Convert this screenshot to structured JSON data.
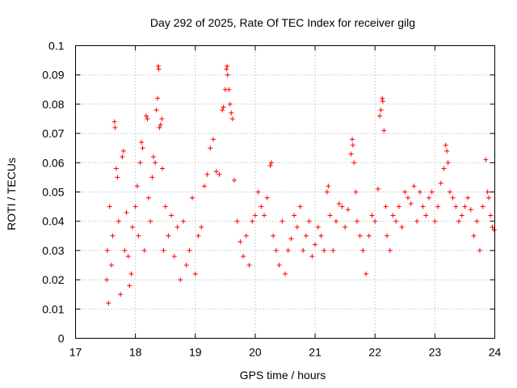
{
  "chart_data": {
    "type": "scatter",
    "title": "Day 292 of 2025, Rate Of TEC Index for receiver gilg",
    "xlabel": "GPS time / hours",
    "ylabel": "ROTI / TECUs",
    "xlim": [
      17,
      24
    ],
    "ylim": [
      0,
      0.1
    ],
    "grid": true,
    "marker": "+",
    "color": "#ff0000",
    "x_ticks": [
      "17",
      "18",
      "19",
      "20",
      "21",
      "22",
      "23",
      "24"
    ],
    "y_ticks": [
      "0",
      "0.01",
      "0.02",
      "0.03",
      "0.04",
      "0.05",
      "0.06",
      "0.07",
      "0.08",
      "0.09",
      "0.1"
    ],
    "series": [
      {
        "name": "ROTI",
        "points": [
          [
            17.52,
            0.02
          ],
          [
            17.53,
            0.03
          ],
          [
            17.55,
            0.012
          ],
          [
            17.57,
            0.045
          ],
          [
            17.6,
            0.025
          ],
          [
            17.62,
            0.035
          ],
          [
            17.65,
            0.074
          ],
          [
            17.66,
            0.072
          ],
          [
            17.68,
            0.058
          ],
          [
            17.7,
            0.055
          ],
          [
            17.72,
            0.04
          ],
          [
            17.75,
            0.015
          ],
          [
            17.78,
            0.062
          ],
          [
            17.8,
            0.064
          ],
          [
            17.82,
            0.03
          ],
          [
            17.85,
            0.043
          ],
          [
            17.88,
            0.028
          ],
          [
            17.9,
            0.018
          ],
          [
            17.93,
            0.022
          ],
          [
            17.95,
            0.038
          ],
          [
            18.0,
            0.045
          ],
          [
            18.03,
            0.052
          ],
          [
            18.05,
            0.035
          ],
          [
            18.08,
            0.06
          ],
          [
            18.1,
            0.067
          ],
          [
            18.12,
            0.065
          ],
          [
            18.15,
            0.03
          ],
          [
            18.18,
            0.076
          ],
          [
            18.2,
            0.075
          ],
          [
            18.22,
            0.048
          ],
          [
            18.25,
            0.04
          ],
          [
            18.28,
            0.055
          ],
          [
            18.3,
            0.062
          ],
          [
            18.33,
            0.06
          ],
          [
            18.35,
            0.078
          ],
          [
            18.37,
            0.082
          ],
          [
            18.38,
            0.093
          ],
          [
            18.39,
            0.092
          ],
          [
            18.4,
            0.072
          ],
          [
            18.42,
            0.073
          ],
          [
            18.44,
            0.075
          ],
          [
            18.45,
            0.058
          ],
          [
            18.47,
            0.03
          ],
          [
            18.5,
            0.045
          ],
          [
            18.55,
            0.035
          ],
          [
            18.6,
            0.042
          ],
          [
            18.65,
            0.028
          ],
          [
            18.7,
            0.038
          ],
          [
            18.75,
            0.02
          ],
          [
            18.8,
            0.04
          ],
          [
            18.85,
            0.025
          ],
          [
            18.9,
            0.03
          ],
          [
            18.95,
            0.048
          ],
          [
            19.0,
            0.022
          ],
          [
            19.05,
            0.035
          ],
          [
            19.1,
            0.038
          ],
          [
            19.15,
            0.052
          ],
          [
            19.2,
            0.056
          ],
          [
            19.25,
            0.065
          ],
          [
            19.3,
            0.068
          ],
          [
            19.35,
            0.057
          ],
          [
            19.4,
            0.056
          ],
          [
            19.45,
            0.078
          ],
          [
            19.47,
            0.079
          ],
          [
            19.5,
            0.085
          ],
          [
            19.52,
            0.092
          ],
          [
            19.53,
            0.093
          ],
          [
            19.54,
            0.09
          ],
          [
            19.56,
            0.085
          ],
          [
            19.58,
            0.08
          ],
          [
            19.6,
            0.077
          ],
          [
            19.62,
            0.075
          ],
          [
            19.65,
            0.054
          ],
          [
            19.7,
            0.04
          ],
          [
            19.75,
            0.033
          ],
          [
            19.8,
            0.028
          ],
          [
            19.85,
            0.035
          ],
          [
            19.9,
            0.025
          ],
          [
            19.95,
            0.04
          ],
          [
            20.0,
            0.042
          ],
          [
            20.05,
            0.05
          ],
          [
            20.1,
            0.045
          ],
          [
            20.15,
            0.042
          ],
          [
            20.2,
            0.048
          ],
          [
            20.25,
            0.059
          ],
          [
            20.27,
            0.06
          ],
          [
            20.3,
            0.035
          ],
          [
            20.35,
            0.03
          ],
          [
            20.4,
            0.025
          ],
          [
            20.45,
            0.04
          ],
          [
            20.5,
            0.022
          ],
          [
            20.55,
            0.03
          ],
          [
            20.6,
            0.034
          ],
          [
            20.65,
            0.042
          ],
          [
            20.7,
            0.038
          ],
          [
            20.75,
            0.045
          ],
          [
            20.8,
            0.03
          ],
          [
            20.85,
            0.035
          ],
          [
            20.9,
            0.04
          ],
          [
            20.95,
            0.028
          ],
          [
            21.0,
            0.032
          ],
          [
            21.05,
            0.038
          ],
          [
            21.1,
            0.035
          ],
          [
            21.15,
            0.03
          ],
          [
            21.2,
            0.05
          ],
          [
            21.22,
            0.052
          ],
          [
            21.25,
            0.042
          ],
          [
            21.3,
            0.03
          ],
          [
            21.35,
            0.04
          ],
          [
            21.4,
            0.046
          ],
          [
            21.45,
            0.045
          ],
          [
            21.5,
            0.038
          ],
          [
            21.55,
            0.044
          ],
          [
            21.6,
            0.063
          ],
          [
            21.62,
            0.068
          ],
          [
            21.63,
            0.066
          ],
          [
            21.65,
            0.06
          ],
          [
            21.68,
            0.05
          ],
          [
            21.7,
            0.04
          ],
          [
            21.75,
            0.035
          ],
          [
            21.8,
            0.03
          ],
          [
            21.85,
            0.022
          ],
          [
            21.9,
            0.035
          ],
          [
            21.95,
            0.042
          ],
          [
            22.0,
            0.04
          ],
          [
            22.05,
            0.051
          ],
          [
            22.08,
            0.076
          ],
          [
            22.1,
            0.078
          ],
          [
            22.12,
            0.082
          ],
          [
            22.13,
            0.081
          ],
          [
            22.15,
            0.071
          ],
          [
            22.18,
            0.045
          ],
          [
            22.2,
            0.035
          ],
          [
            22.25,
            0.03
          ],
          [
            22.3,
            0.042
          ],
          [
            22.35,
            0.04
          ],
          [
            22.4,
            0.045
          ],
          [
            22.45,
            0.038
          ],
          [
            22.5,
            0.05
          ],
          [
            22.55,
            0.048
          ],
          [
            22.6,
            0.046
          ],
          [
            22.65,
            0.052
          ],
          [
            22.7,
            0.04
          ],
          [
            22.75,
            0.05
          ],
          [
            22.8,
            0.045
          ],
          [
            22.85,
            0.042
          ],
          [
            22.9,
            0.048
          ],
          [
            22.95,
            0.05
          ],
          [
            23.0,
            0.04
          ],
          [
            23.05,
            0.045
          ],
          [
            23.1,
            0.053
          ],
          [
            23.15,
            0.058
          ],
          [
            23.18,
            0.066
          ],
          [
            23.2,
            0.064
          ],
          [
            23.22,
            0.06
          ],
          [
            23.25,
            0.05
          ],
          [
            23.3,
            0.048
          ],
          [
            23.35,
            0.045
          ],
          [
            23.4,
            0.04
          ],
          [
            23.45,
            0.042
          ],
          [
            23.5,
            0.045
          ],
          [
            23.55,
            0.048
          ],
          [
            23.6,
            0.044
          ],
          [
            23.65,
            0.035
          ],
          [
            23.7,
            0.04
          ],
          [
            23.75,
            0.03
          ],
          [
            23.8,
            0.045
          ],
          [
            23.85,
            0.061
          ],
          [
            23.88,
            0.05
          ],
          [
            23.9,
            0.048
          ],
          [
            23.93,
            0.042
          ],
          [
            23.96,
            0.038
          ],
          [
            23.99,
            0.037
          ]
        ]
      }
    ]
  }
}
